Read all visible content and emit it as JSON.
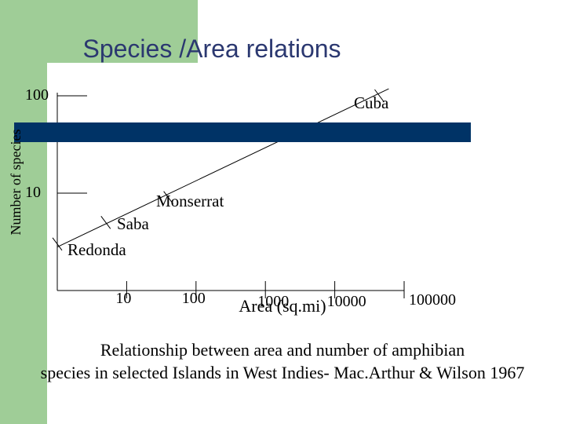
{
  "slide": {
    "title": "Species /Area relations",
    "accent_color": "#9fcd97",
    "band_color": "#003366",
    "text_color": "#2b3870"
  },
  "chart_data": {
    "type": "scatter",
    "title": "Species /Area relations",
    "xlabel": "Area (sq.mi)",
    "ylabel": "Number of species",
    "x_scale": "log",
    "y_scale": "log",
    "x_ticks": [
      "10",
      "100",
      "1000",
      "10000",
      "100000"
    ],
    "y_ticks": [
      "10",
      "100"
    ],
    "xlim": [
      1,
      100000
    ],
    "ylim": [
      1,
      100
    ],
    "points": [
      {
        "label": "Redonda",
        "x": 1,
        "y": 3
      },
      {
        "label": "Saba",
        "x": 5,
        "y": 5
      },
      {
        "label": "Monserrat",
        "x": 40,
        "y": 9
      },
      {
        "label": "Cuba",
        "x": 44000,
        "y": 100
      }
    ],
    "trend_line": {
      "x": [
        1,
        60000
      ],
      "y": [
        2.8,
        118
      ]
    },
    "caption_lines": [
      "Relationship between area and number of amphibian",
      " species in selected Islands in West Indies- Mac.Arthur & Wilson 1967"
    ]
  }
}
